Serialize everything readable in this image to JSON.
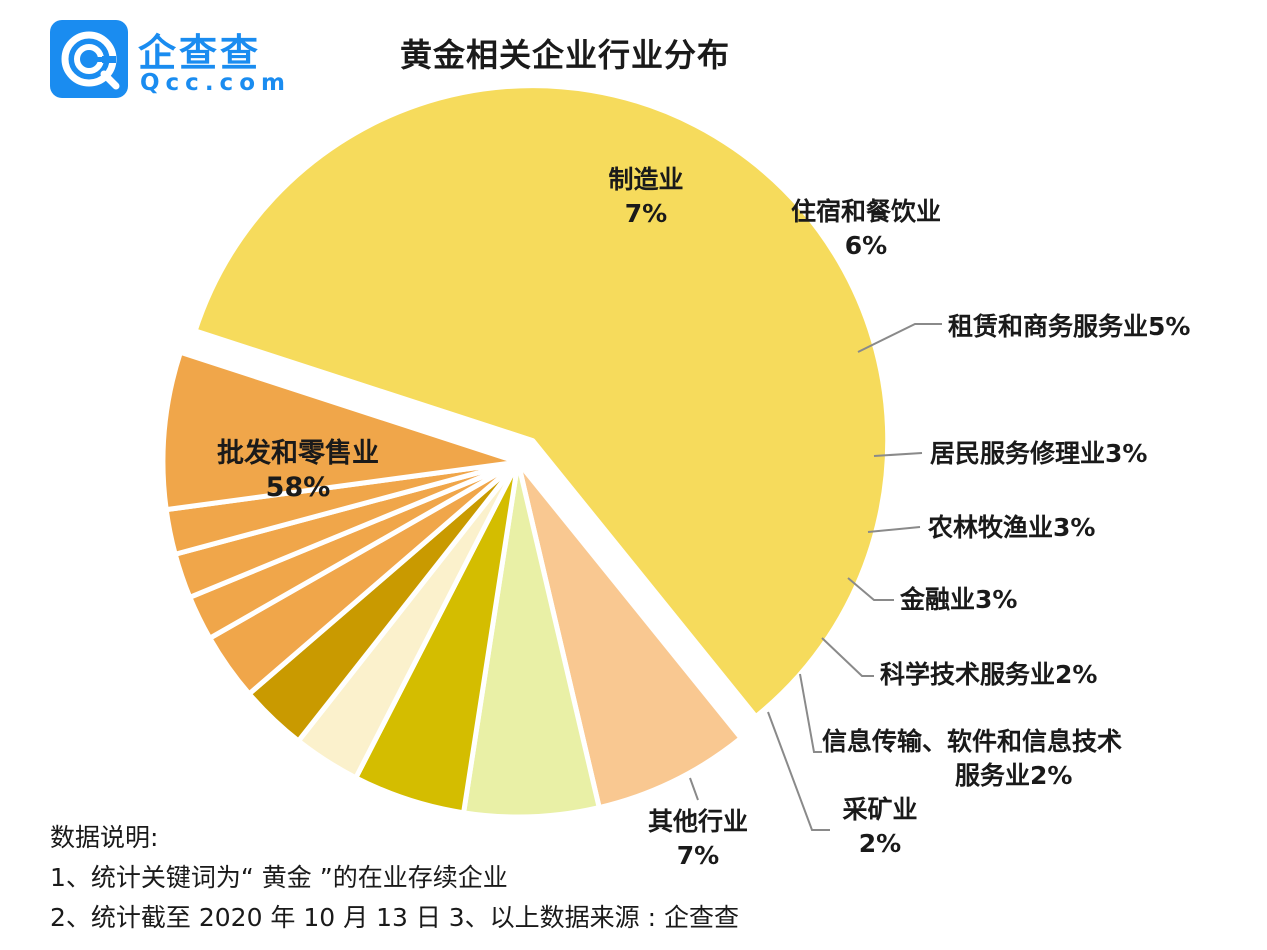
{
  "logo": {
    "name": "企查查",
    "domain": "Qcc.com"
  },
  "chart_data": {
    "type": "pie",
    "title": "黄金相关企业行业分布",
    "slices": [
      {
        "label": "批发和零售业",
        "value": 58,
        "pct_label": "58%",
        "color": "#f6db5c"
      },
      {
        "label": "制造业",
        "value": 7,
        "pct_label": "7%",
        "color": "#f9c891"
      },
      {
        "label": "住宿和餐饮业",
        "value": 6,
        "pct_label": "6%",
        "color": "#e9f0a6"
      },
      {
        "label": "租赁和商务服务业",
        "value": 5,
        "pct_label": "5%",
        "color": "#d4bd00"
      },
      {
        "label": "居民服务修理业",
        "value": 3,
        "pct_label": "3%",
        "color": "#fbf1cc"
      },
      {
        "label": "农林牧渔业",
        "value": 3,
        "pct_label": "3%",
        "color": "#c99a00"
      },
      {
        "label": "金融业",
        "value": 3,
        "pct_label": "3%",
        "color": "#f0a64a"
      },
      {
        "label": "科学技术服务业",
        "value": 2,
        "pct_label": "2%",
        "color": "#f0a64a"
      },
      {
        "label": "信息传输、软件和信息技术服务业",
        "value": 2,
        "pct_label": "2%",
        "color": "#f0a64a"
      },
      {
        "label": "采矿业",
        "value": 2,
        "pct_label": "2%",
        "color": "#f0a64a"
      },
      {
        "label": "其他行业",
        "value": 7,
        "pct_label": "7%",
        "color": "#f0a64a"
      }
    ]
  },
  "notes": {
    "heading": "数据说明:",
    "line1": "1、统计关键词为“ 黄金 ”的在业存续企业",
    "line2": "2、统计截至 2020 年 10 月 13 日 3、以上数据来源 : 企查查"
  }
}
